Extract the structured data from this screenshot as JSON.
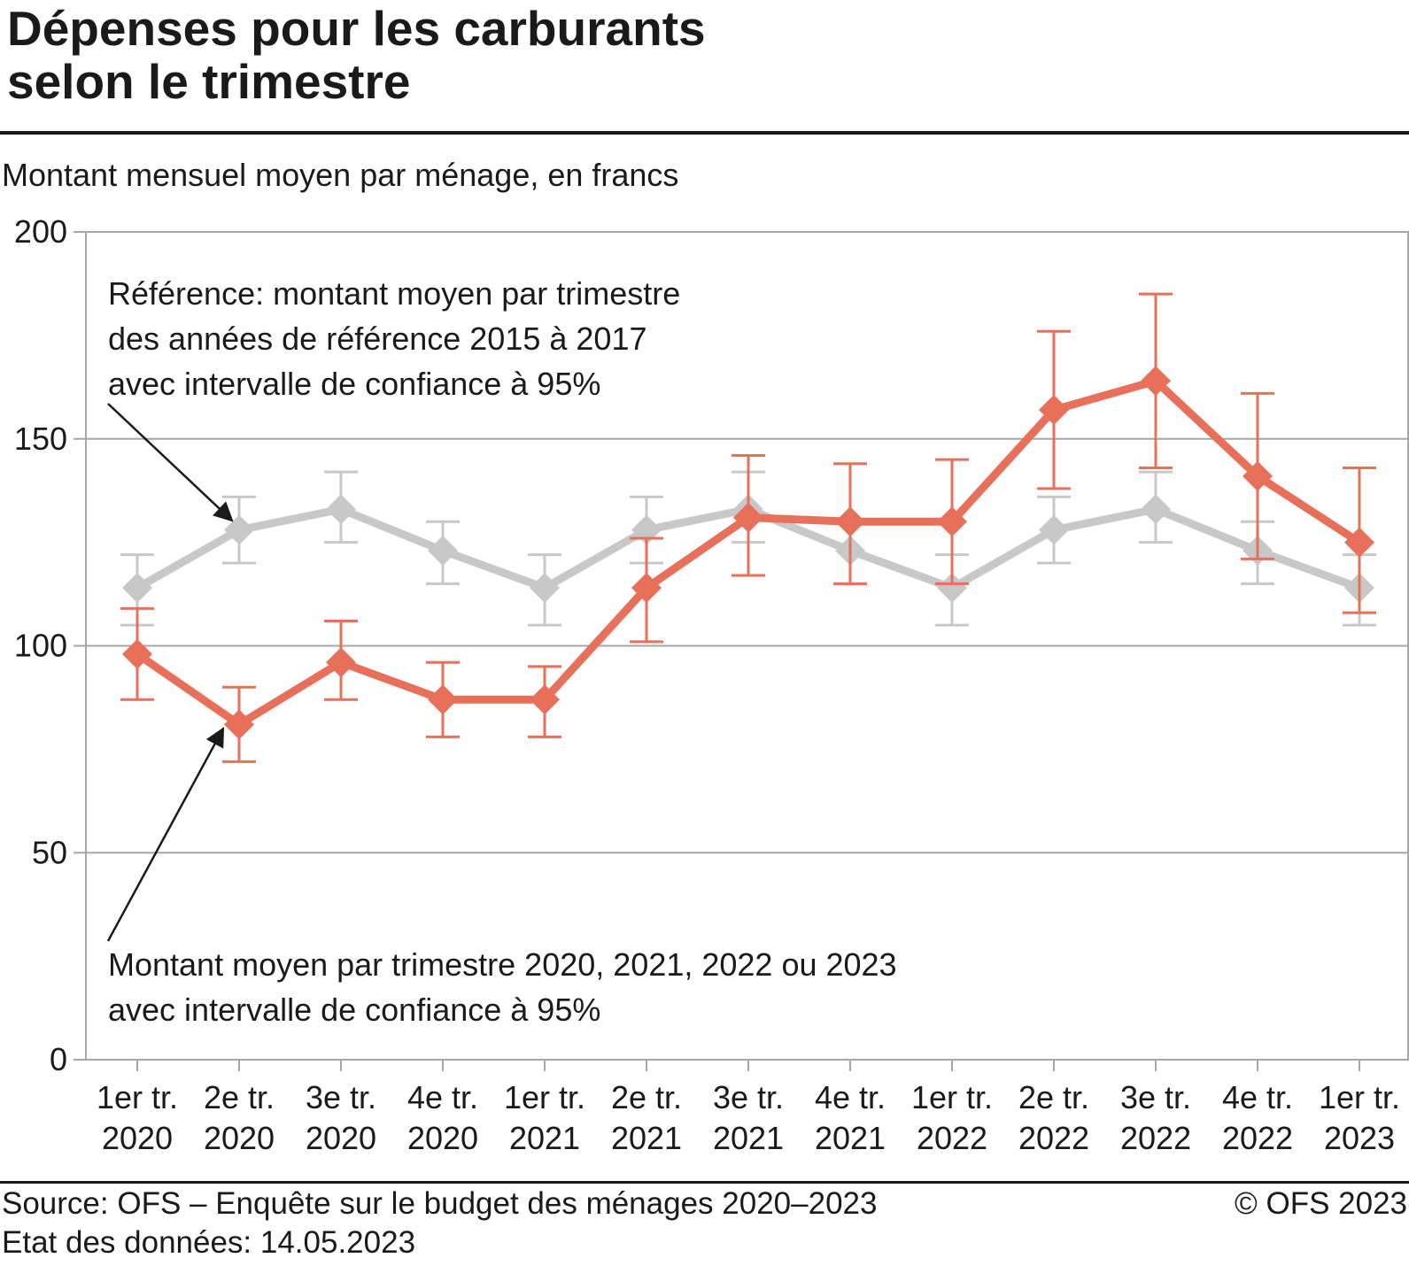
{
  "header": {
    "title_lines": [
      "Dépenses pour les carburants",
      "selon le trimestre"
    ],
    "subtitle": "Montant mensuel moyen par ménage, en francs"
  },
  "footer": {
    "source": "Source: OFS – Enquête sur le budget des ménages 2020–2023",
    "data_state": "Etat des données: 14.05.2023",
    "copyright": "© OFS 2023"
  },
  "colors": {
    "reference": "#c8c8c8",
    "current": "#e8705a",
    "grid": "#a6a6a6",
    "text": "#1a1a1a"
  },
  "chart_data": {
    "type": "line",
    "ylim": [
      0,
      200
    ],
    "yticks": [
      0,
      50,
      100,
      150,
      200
    ],
    "categories": [
      [
        "1er tr.",
        "2020"
      ],
      [
        "2e tr.",
        "2020"
      ],
      [
        "3e tr.",
        "2020"
      ],
      [
        "4e tr.",
        "2020"
      ],
      [
        "1er tr.",
        "2021"
      ],
      [
        "2e tr.",
        "2021"
      ],
      [
        "3e tr.",
        "2021"
      ],
      [
        "4e tr.",
        "2021"
      ],
      [
        "1er tr.",
        "2022"
      ],
      [
        "2e tr.",
        "2022"
      ],
      [
        "3e tr.",
        "2022"
      ],
      [
        "4e tr.",
        "2022"
      ],
      [
        "1er tr.",
        "2023"
      ]
    ],
    "series": [
      {
        "key": "reference",
        "values": [
          114,
          128,
          133,
          123,
          114,
          128,
          133,
          123,
          114,
          128,
          133,
          123,
          114
        ],
        "ci_low": [
          105,
          120,
          125,
          115,
          105,
          120,
          125,
          115,
          105,
          120,
          125,
          115,
          105
        ],
        "ci_high": [
          122,
          136,
          142,
          130,
          122,
          136,
          142,
          130,
          122,
          136,
          142,
          130,
          122
        ]
      },
      {
        "key": "current",
        "values": [
          98,
          81,
          96,
          87,
          87,
          114,
          131,
          130,
          130,
          157,
          164,
          141,
          125
        ],
        "ci_low": [
          87,
          72,
          87,
          78,
          78,
          101,
          117,
          115,
          115,
          138,
          143,
          121,
          108
        ],
        "ci_high": [
          109,
          90,
          106,
          96,
          95,
          126,
          146,
          144,
          145,
          176,
          185,
          161,
          143
        ]
      }
    ],
    "annotations": {
      "reference": [
        "Référence: montant moyen par trimestre",
        "des années de référence 2015 à 2017",
        "avec intervalle de confiance à 95%"
      ],
      "current": [
        "Montant moyen par trimestre 2020, 2021, 2022 ou 2023",
        "avec intervalle de confiance à 95%"
      ]
    }
  }
}
